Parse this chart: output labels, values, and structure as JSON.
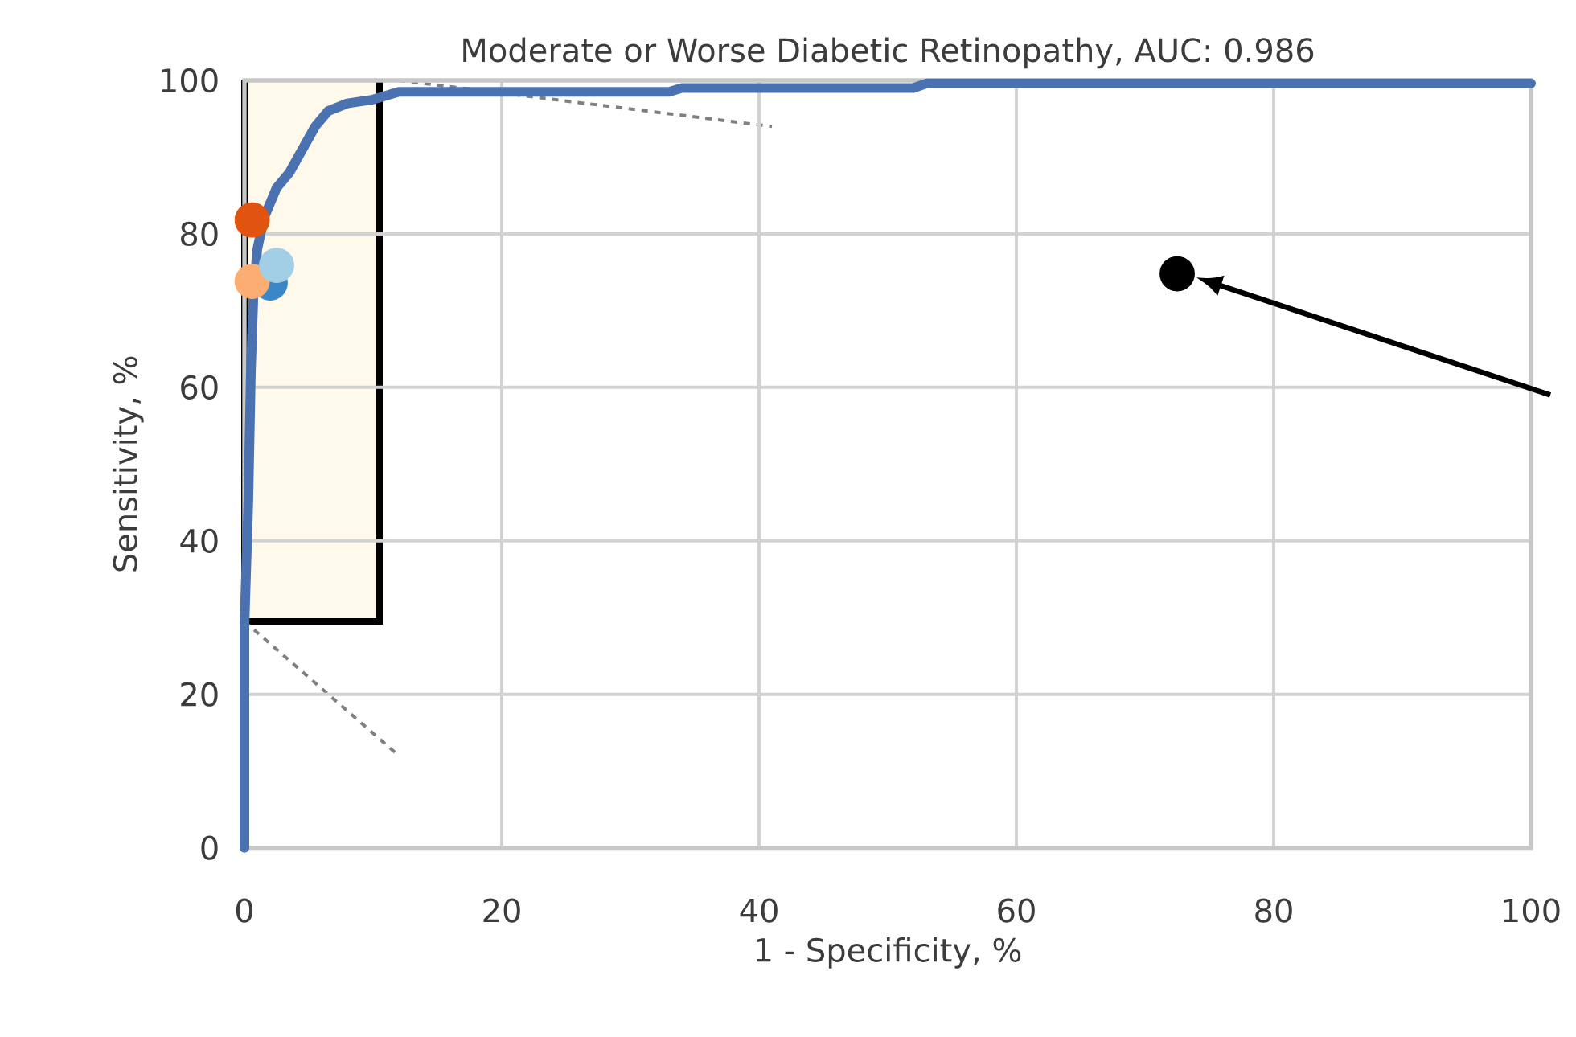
{
  "chart_data": {
    "type": "line",
    "title": "Moderate or Worse Diabetic Retinopathy, AUC: 0.986",
    "xlabel": "1 - Specificity, %",
    "ylabel": "Sensitivity, %",
    "xlim": [
      0,
      100
    ],
    "ylim": [
      0,
      100
    ],
    "xticks": [
      0,
      20,
      40,
      60,
      80,
      100
    ],
    "yticks": [
      0,
      20,
      40,
      60,
      80,
      100
    ],
    "grid": true,
    "series": [
      {
        "color": "#4a72b0",
        "marker": "none",
        "x": [
          0,
          0,
          0.3,
          0.5,
          0.7,
          1,
          1.5,
          2.5,
          3.5,
          4.5,
          5.5,
          6.5,
          8,
          10,
          12,
          33,
          34,
          52,
          53,
          100
        ],
        "values": [
          0,
          29,
          45,
          62,
          72,
          78,
          82,
          86,
          88,
          91,
          94,
          96,
          97,
          97.5,
          98.5,
          98.5,
          99,
          99,
          99.6,
          99.6
        ]
      },
      {
        "type": "scatter",
        "color": "#e0540f",
        "marker": "circle",
        "x": [
          0.6
        ],
        "values": [
          81.8
        ]
      },
      {
        "type": "scatter",
        "color": "#3a87c8",
        "marker": "circle",
        "x": [
          2
        ],
        "values": [
          73.6
        ]
      },
      {
        "type": "scatter",
        "color": "#fcae72",
        "marker": "circle",
        "x": [
          0.6
        ],
        "values": [
          73.8
        ]
      },
      {
        "type": "scatter",
        "color": "#a3cfe6",
        "marker": "circle",
        "x": [
          2.5
        ],
        "values": [
          75.9
        ]
      },
      {
        "type": "scatter",
        "color": "#000000",
        "marker": "circle",
        "x": [
          72.5
        ],
        "values": [
          74.8
        ]
      }
    ]
  }
}
